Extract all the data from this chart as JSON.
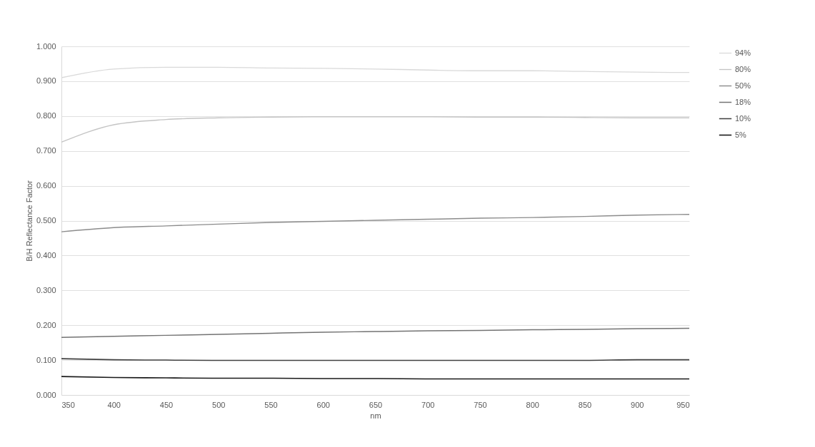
{
  "chart_data": {
    "type": "line",
    "xlabel": "nm",
    "ylabel": "B/H Reflectance Factor",
    "x": [
      350,
      400,
      450,
      500,
      550,
      600,
      650,
      700,
      750,
      800,
      850,
      900,
      950
    ],
    "xlim": [
      350,
      950
    ],
    "xticks": [
      350,
      400,
      450,
      500,
      550,
      600,
      650,
      700,
      750,
      800,
      850,
      900,
      950
    ],
    "ylim": [
      0,
      1
    ],
    "yticks": [
      {
        "value": 0,
        "label": "0.000"
      },
      {
        "value": 0.1,
        "label": "0.100"
      },
      {
        "value": 0.2,
        "label": "0.200"
      },
      {
        "value": 0.3,
        "label": "0.300"
      },
      {
        "value": 0.4,
        "label": "0.400"
      },
      {
        "value": 0.5,
        "label": "0.500"
      },
      {
        "value": 0.6,
        "label": "0.600"
      },
      {
        "value": 0.7,
        "label": "0.700"
      },
      {
        "value": 0.8,
        "label": "0.800"
      },
      {
        "value": 0.9,
        "label": "0.900"
      },
      {
        "value": 1,
        "label": "1.000"
      }
    ],
    "grid": "y",
    "legend": "right",
    "line_style": "solid",
    "marker": "none",
    "series": [
      {
        "name": "94%",
        "color": "#d9d9d9",
        "values": [
          0.91,
          0.935,
          0.94,
          0.94,
          0.938,
          0.937,
          0.935,
          0.932,
          0.93,
          0.93,
          0.928,
          0.926,
          0.925
        ]
      },
      {
        "name": "80%",
        "color": "#c4c4c4",
        "values": [
          0.725,
          0.775,
          0.79,
          0.795,
          0.797,
          0.798,
          0.798,
          0.798,
          0.797,
          0.797,
          0.796,
          0.795,
          0.795
        ]
      },
      {
        "name": "50%",
        "color": "#8c8c8c",
        "values": [
          0.468,
          0.48,
          0.485,
          0.49,
          0.495,
          0.498,
          0.501,
          0.504,
          0.507,
          0.509,
          0.512,
          0.516,
          0.518
        ]
      },
      {
        "name": "18%",
        "color": "#737373",
        "values": [
          0.165,
          0.168,
          0.171,
          0.174,
          0.177,
          0.18,
          0.182,
          0.184,
          0.185,
          0.187,
          0.188,
          0.19,
          0.191
        ]
      },
      {
        "name": "10%",
        "color": "#404040",
        "values": [
          0.104,
          0.101,
          0.1,
          0.099,
          0.099,
          0.099,
          0.099,
          0.099,
          0.099,
          0.099,
          0.099,
          0.101,
          0.101
        ]
      },
      {
        "name": "5%",
        "color": "#1a1a1a",
        "values": [
          0.053,
          0.05,
          0.049,
          0.048,
          0.048,
          0.047,
          0.047,
          0.046,
          0.046,
          0.046,
          0.046,
          0.046,
          0.046
        ]
      }
    ]
  }
}
